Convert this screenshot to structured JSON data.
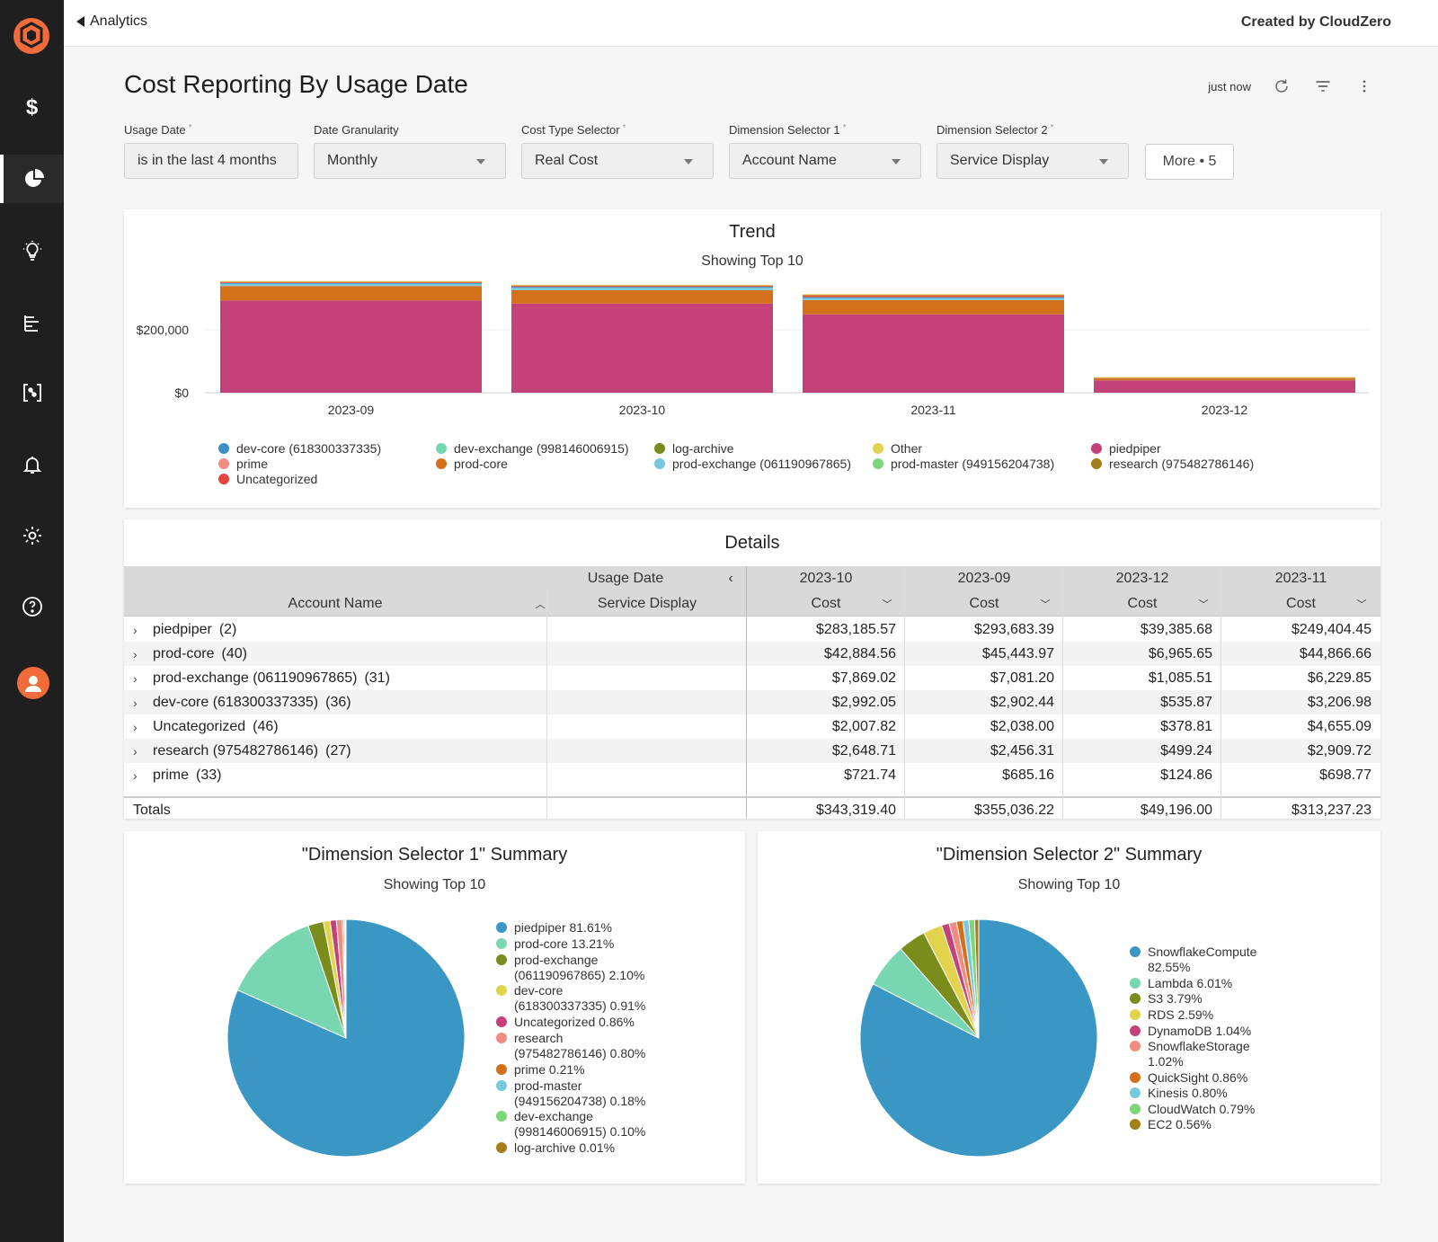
{
  "header": {
    "back_label": "Analytics",
    "created_by": "Created by CloudZero",
    "page_title": "Cost Reporting By Usage Date",
    "refresh_status": "just now"
  },
  "filters": [
    {
      "label": "Usage Date",
      "required": "*",
      "value": "is in the last 4 months"
    },
    {
      "label": "Date Granularity",
      "required": "",
      "value": "Monthly"
    },
    {
      "label": "Cost Type Selector",
      "required": "*",
      "value": "Real Cost"
    },
    {
      "label": "Dimension Selector 1",
      "required": "*",
      "value": "Account Name"
    },
    {
      "label": "Dimension Selector 2",
      "required": "*",
      "value": "Service Display"
    }
  ],
  "more_button": "More • 5",
  "trend": {
    "title": "Trend",
    "subtitle": "Showing Top 10",
    "legend": [
      {
        "label": "dev-core (618300337335)",
        "color": "#3b8fc4"
      },
      {
        "label": "prime",
        "color": "#f28b82"
      },
      {
        "label": "Uncategorized",
        "color": "#e8453c"
      },
      {
        "label": "dev-exchange (998146006915)",
        "color": "#76d7b0"
      },
      {
        "label": "prod-core",
        "color": "#d4701a"
      },
      {
        "label": "log-archive",
        "color": "#7a8c1c"
      },
      {
        "label": "prod-exchange (061190967865)",
        "color": "#78c9dd"
      },
      {
        "label": "Other",
        "color": "#e1d44c"
      },
      {
        "label": "prod-master (949156204738)",
        "color": "#7fd67a"
      },
      {
        "label": "piedpiper",
        "color": "#c4427a"
      },
      {
        "label": "research (975482786146)",
        "color": "#a57e1c"
      }
    ]
  },
  "chart_data": {
    "type": "bar",
    "stacked": true,
    "title": "Trend",
    "subtitle": "Showing Top 10",
    "categories": [
      "2023-09",
      "2023-10",
      "2023-11",
      "2023-12"
    ],
    "y_ticks": [
      "$200,000",
      "$0"
    ],
    "ylim": [
      0,
      360000
    ],
    "series": [
      {
        "name": "piedpiper",
        "color": "#c4427a",
        "values": [
          293683.39,
          283185.57,
          249404.45,
          39385.68
        ]
      },
      {
        "name": "prod-core",
        "color": "#d4701a",
        "values": [
          45443.97,
          42884.56,
          44866.66,
          6965.65
        ]
      },
      {
        "name": "prod-exchange (061190967865)",
        "color": "#78c9dd",
        "values": [
          7081.2,
          7869.02,
          6229.85,
          1085.51
        ]
      },
      {
        "name": "dev-core (618300337335)",
        "color": "#3b8fc4",
        "values": [
          2902.44,
          2992.05,
          3206.98,
          535.87
        ]
      },
      {
        "name": "Uncategorized",
        "color": "#e8453c",
        "values": [
          2038.0,
          2007.82,
          4655.09,
          378.81
        ]
      },
      {
        "name": "research (975482786146)",
        "color": "#a57e1c",
        "values": [
          2456.31,
          2648.71,
          2909.72,
          499.24
        ]
      },
      {
        "name": "prime",
        "color": "#f28b82",
        "values": [
          685.16,
          721.74,
          698.77,
          124.86
        ]
      },
      {
        "name": "Other",
        "color": "#e1d44c",
        "values": [
          745.53,
          1010.0,
          1265.71,
          220.38
        ]
      }
    ]
  },
  "details": {
    "title": "Details",
    "group_header": "Usage Date",
    "col_account": "Account Name",
    "col_service": "Service Display",
    "dates": [
      "2023-10",
      "2023-09",
      "2023-12",
      "2023-11"
    ],
    "cost_label": "Cost",
    "rows": [
      {
        "name": "piedpiper",
        "count": "(2)",
        "values": [
          "$283,185.57",
          "$293,683.39",
          "$39,385.68",
          "$249,404.45"
        ]
      },
      {
        "name": "prod-core",
        "count": "(40)",
        "values": [
          "$42,884.56",
          "$45,443.97",
          "$6,965.65",
          "$44,866.66"
        ]
      },
      {
        "name": "prod-exchange (061190967865)",
        "count": "(31)",
        "values": [
          "$7,869.02",
          "$7,081.20",
          "$1,085.51",
          "$6,229.85"
        ]
      },
      {
        "name": "dev-core (618300337335)",
        "count": "(36)",
        "values": [
          "$2,992.05",
          "$2,902.44",
          "$535.87",
          "$3,206.98"
        ]
      },
      {
        "name": "Uncategorized",
        "count": "(46)",
        "values": [
          "$2,007.82",
          "$2,038.00",
          "$378.81",
          "$4,655.09"
        ]
      },
      {
        "name": "research (975482786146)",
        "count": "(27)",
        "values": [
          "$2,648.71",
          "$2,456.31",
          "$499.24",
          "$2,909.72"
        ]
      },
      {
        "name": "prime",
        "count": "(33)",
        "values": [
          "$721.74",
          "$685.16",
          "$124.86",
          "$698.77"
        ]
      }
    ],
    "totals_label": "Totals",
    "totals": [
      "$343,319.40",
      "$355,036.22",
      "$49,196.00",
      "$313,237.23"
    ]
  },
  "pie1": {
    "title": "\"Dimension Selector 1\" Summary",
    "subtitle": "Showing Top 10",
    "slices": [
      {
        "label": "piedpiper 81.61%",
        "value": 81.61,
        "color": "#3a96c2"
      },
      {
        "label": "prod-core 13.21%",
        "value": 13.21,
        "color": "#78d6b0"
      },
      {
        "label": "prod-exchange (061190967865) 2.10%",
        "value": 2.1,
        "color": "#7a8c1c"
      },
      {
        "label": "dev-core (618300337335) 0.91%",
        "value": 0.91,
        "color": "#e1d44c"
      },
      {
        "label": "Uncategorized 0.86%",
        "value": 0.86,
        "color": "#c4427a"
      },
      {
        "label": "research (975482786146) 0.80%",
        "value": 0.8,
        "color": "#f28b82"
      },
      {
        "label": "prime 0.21%",
        "value": 0.21,
        "color": "#d4701a"
      },
      {
        "label": "prod-master (949156204738) 0.18%",
        "value": 0.18,
        "color": "#78c9dd"
      },
      {
        "label": "dev-exchange (998146006915) 0.10%",
        "value": 0.1,
        "color": "#7fd67a"
      },
      {
        "label": "log-archive 0.01%",
        "value": 0.01,
        "color": "#a57e1c"
      }
    ]
  },
  "pie2": {
    "title": "\"Dimension Selector 2\" Summary",
    "subtitle": "Showing Top 10",
    "slices": [
      {
        "label": "SnowflakeCompute 82.55%",
        "value": 82.55,
        "color": "#3a96c2"
      },
      {
        "label": "Lambda 6.01%",
        "value": 6.01,
        "color": "#78d6b0"
      },
      {
        "label": "S3 3.79%",
        "value": 3.79,
        "color": "#7a8c1c"
      },
      {
        "label": "RDS 2.59%",
        "value": 2.59,
        "color": "#e1d44c"
      },
      {
        "label": "DynamoDB 1.04%",
        "value": 1.04,
        "color": "#c4427a"
      },
      {
        "label": "SnowflakeStorage 1.02%",
        "value": 1.02,
        "color": "#f28b82"
      },
      {
        "label": "QuickSight 0.86%",
        "value": 0.86,
        "color": "#d4701a"
      },
      {
        "label": "Kinesis 0.80%",
        "value": 0.8,
        "color": "#78c9dd"
      },
      {
        "label": "CloudWatch 0.79%",
        "value": 0.79,
        "color": "#7fd67a"
      },
      {
        "label": "EC2 0.56%",
        "value": 0.56,
        "color": "#a57e1c"
      }
    ]
  }
}
